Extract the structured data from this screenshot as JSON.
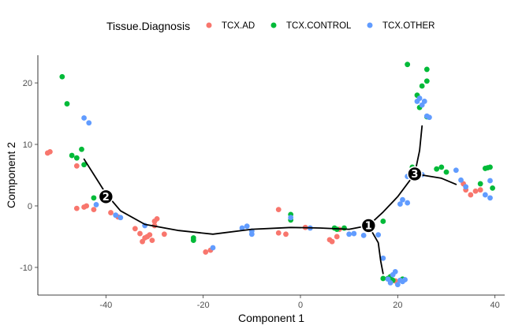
{
  "chart_data": {
    "type": "scatter",
    "xlabel": "Component 1",
    "ylabel": "Component 2",
    "xlim": [
      -54,
      42
    ],
    "ylim": [
      -14.5,
      24.5
    ],
    "x_ticks": [
      -40,
      -20,
      0,
      20,
      40
    ],
    "y_ticks": [
      -10,
      0,
      10,
      20
    ],
    "x_tick_labels": [
      "-40",
      "-20",
      "0",
      "20",
      "40"
    ],
    "y_tick_labels": [
      "-10",
      "0",
      "10",
      "20"
    ],
    "grid": false,
    "legend": {
      "title": "Tissue.Diagnosis",
      "placement": "top",
      "items": [
        "TCX.AD",
        "TCX.CONTROL",
        "TCX.OTHER"
      ]
    },
    "series": [
      {
        "name": "TCX.AD",
        "color": "#F8766D",
        "points": [
          [
            -52,
            8.6
          ],
          [
            -51.5,
            8.8
          ],
          [
            -46,
            6.5
          ],
          [
            -46,
            -0.4
          ],
          [
            -44.5,
            -0.2
          ],
          [
            -44,
            0
          ],
          [
            -42.5,
            -0.6
          ],
          [
            -39,
            -1.1
          ],
          [
            -37.5,
            -1.8
          ],
          [
            -34,
            -3.7
          ],
          [
            -33,
            -4.5
          ],
          [
            -32.5,
            -5.8
          ],
          [
            -32,
            -5.2
          ],
          [
            -31.5,
            -5
          ],
          [
            -31,
            -4.7
          ],
          [
            -30.5,
            -5.6
          ],
          [
            -30,
            -3.2
          ],
          [
            -30,
            -2.5
          ],
          [
            -29.5,
            -2.1
          ],
          [
            -28,
            -4.6
          ],
          [
            -19.5,
            -7.5
          ],
          [
            -18.5,
            -7.2
          ],
          [
            -4.5,
            -4.4
          ],
          [
            -4.5,
            -0.6
          ],
          [
            -3,
            -4.6
          ],
          [
            1,
            -3.5
          ],
          [
            6,
            -5.5
          ],
          [
            6.5,
            -5.8
          ],
          [
            7.5,
            -5
          ],
          [
            8,
            -3.8
          ],
          [
            19.5,
            -12.2
          ],
          [
            33.5,
            3.6
          ],
          [
            34,
            2.6
          ],
          [
            35,
            1.8
          ],
          [
            36,
            2.4
          ],
          [
            37,
            2.6
          ]
        ]
      },
      {
        "name": "TCX.CONTROL",
        "color": "#00BA38",
        "points": [
          [
            -49,
            21
          ],
          [
            -48,
            16.6
          ],
          [
            -47,
            8.2
          ],
          [
            -46,
            7.8
          ],
          [
            -45,
            9.2
          ],
          [
            -44.5,
            6.7
          ],
          [
            -42.5,
            1.3
          ],
          [
            -22,
            -5.2
          ],
          [
            -22,
            -5.6
          ],
          [
            -2,
            -1.4
          ],
          [
            -2,
            -2.3
          ],
          [
            7,
            -3.6
          ],
          [
            7.5,
            -3.8
          ],
          [
            9,
            -3.6
          ],
          [
            17,
            -2.5
          ],
          [
            17,
            -11.8
          ],
          [
            18,
            -11.8
          ],
          [
            18.5,
            -11.5
          ],
          [
            19,
            -12.1
          ],
          [
            21,
            -11.9
          ],
          [
            22,
            23
          ],
          [
            23,
            6.3
          ],
          [
            24,
            18
          ],
          [
            24.5,
            16
          ],
          [
            25,
            19.5
          ],
          [
            26,
            20.3
          ],
          [
            26,
            22.2
          ],
          [
            26,
            14.5
          ],
          [
            28,
            6
          ],
          [
            29,
            6.3
          ],
          [
            30,
            5.5
          ],
          [
            37,
            3.6
          ],
          [
            38,
            6.1
          ],
          [
            38.5,
            6.2
          ],
          [
            39,
            6.3
          ],
          [
            39.5,
            2.9
          ]
        ]
      },
      {
        "name": "TCX.OTHER",
        "color": "#619CFF",
        "points": [
          [
            -44.5,
            14.3
          ],
          [
            -43.5,
            13.5
          ],
          [
            -42,
            0.2
          ],
          [
            -38,
            -1.5
          ],
          [
            -37,
            -1.9
          ],
          [
            -32,
            -3.2
          ],
          [
            -18,
            -6.8
          ],
          [
            -12,
            -3.6
          ],
          [
            -11,
            -3.3
          ],
          [
            -10,
            -4.1
          ],
          [
            -10,
            -4.6
          ],
          [
            -2,
            -1.9
          ],
          [
            2,
            -3.6
          ],
          [
            10,
            -4.6
          ],
          [
            11,
            -4.5
          ],
          [
            13,
            -4.8
          ],
          [
            14,
            -3.2
          ],
          [
            15,
            -3.1
          ],
          [
            16,
            -4.7
          ],
          [
            17,
            -8.5
          ],
          [
            18,
            -11.9
          ],
          [
            18.5,
            -12.5
          ],
          [
            19,
            -11.2
          ],
          [
            19.5,
            -10.7
          ],
          [
            20,
            -12.8
          ],
          [
            20.5,
            -12.1
          ],
          [
            21,
            -12.3
          ],
          [
            21.5,
            -12
          ],
          [
            22,
            0.5
          ],
          [
            22,
            4.8
          ],
          [
            20.5,
            0.3
          ],
          [
            21,
            1
          ],
          [
            24,
            17
          ],
          [
            24.5,
            17.5
          ],
          [
            25,
            16.4
          ],
          [
            25.5,
            17
          ],
          [
            26,
            14.6
          ],
          [
            26.5,
            14.4
          ],
          [
            25,
            5.1
          ],
          [
            32,
            5.8
          ],
          [
            33,
            4.2
          ],
          [
            34,
            3.1
          ],
          [
            38,
            1.8
          ],
          [
            39,
            1.3
          ],
          [
            39,
            4.1
          ]
        ]
      }
    ],
    "trajectory": [
      [
        [
          -44.5,
          7.6
        ],
        [
          -40,
          2
        ],
        [
          -37,
          -0.8
        ],
        [
          -32,
          -3
        ],
        [
          -25,
          -4
        ],
        [
          -18,
          -4.6
        ],
        [
          -10,
          -3.8
        ],
        [
          -2,
          -3.5
        ],
        [
          4,
          -3.6
        ],
        [
          10,
          -3.8
        ],
        [
          14,
          -3.2
        ],
        [
          17,
          -1
        ],
        [
          20,
          1.5
        ],
        [
          23.5,
          5.2
        ],
        [
          29,
          4.5
        ],
        [
          32,
          3.5
        ]
      ],
      [
        [
          14,
          -3.2
        ],
        [
          16,
          -6
        ],
        [
          16.5,
          -9
        ],
        [
          17,
          -11
        ]
      ],
      [
        [
          23.5,
          5.2
        ],
        [
          24.5,
          9
        ],
        [
          25,
          13
        ]
      ]
    ],
    "nodes": [
      {
        "label": "1",
        "x": 14,
        "y": -3.2
      },
      {
        "label": "2",
        "x": -40,
        "y": 1.5
      },
      {
        "label": "3",
        "x": 23.5,
        "y": 5.2
      }
    ]
  }
}
